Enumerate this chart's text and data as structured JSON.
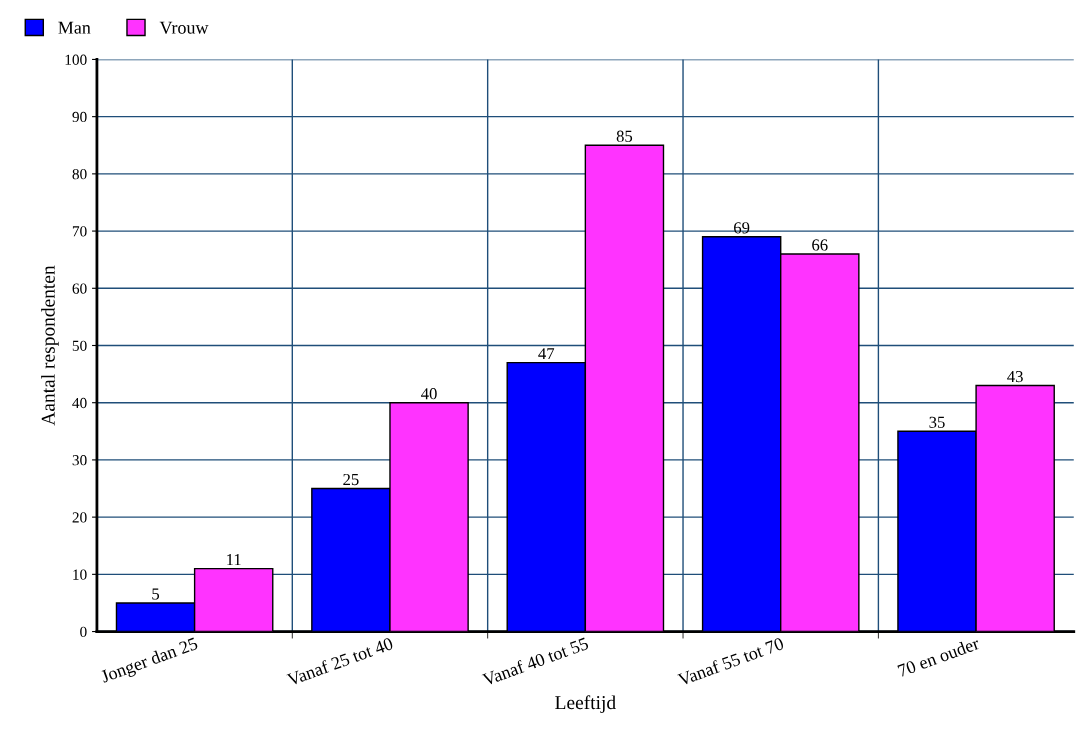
{
  "chart_data": {
    "type": "bar",
    "xlabel": "Leeftijd",
    "ylabel": "Aantal respondenten",
    "categories": [
      "Jonger dan 25",
      "Vanaf 25 tot 40",
      "Vanaf 40 tot 55",
      "Vanaf 55 tot 70",
      "70 en ouder"
    ],
    "series": [
      {
        "name": "Man",
        "color": "#0000ff",
        "values": [
          5,
          25,
          47,
          69,
          35
        ]
      },
      {
        "name": "Vrouw",
        "color": "#ff33ff",
        "values": [
          11,
          40,
          85,
          66,
          43
        ]
      }
    ],
    "ylim": [
      0,
      100
    ],
    "yticks": [
      0,
      10,
      20,
      30,
      40,
      50,
      60,
      70,
      80,
      90,
      100
    ],
    "grid": true,
    "legend": "top left",
    "data_labels": true
  }
}
